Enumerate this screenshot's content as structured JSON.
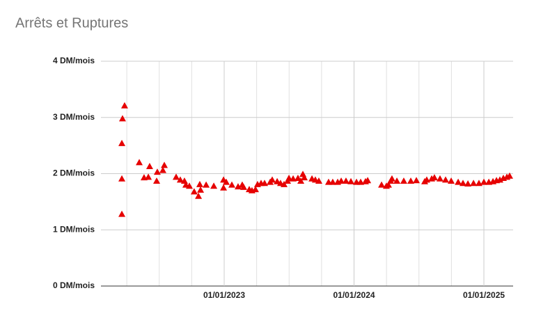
{
  "chart_data": {
    "type": "scatter",
    "title": "Arrêts et Ruptures",
    "marker": "triangle",
    "color": "#e60000",
    "grid": true,
    "xlim": [
      2022.051,
      2025.225
    ],
    "xticks": [
      {
        "value": 2023,
        "label": "01/01/2023"
      },
      {
        "value": 2024,
        "label": "01/01/2024"
      },
      {
        "value": 2025,
        "label": "01/01/2025"
      }
    ],
    "x_minor_grid": [
      2022.25,
      2022.5,
      2022.75,
      2023.25,
      2023.5,
      2023.75,
      2024.25,
      2024.5,
      2024.75
    ],
    "ylim": [
      0,
      4
    ],
    "yticks": [
      {
        "value": 0,
        "label": "0 DM/mois"
      },
      {
        "value": 1,
        "label": "1 DM/mois"
      },
      {
        "value": 2,
        "label": "2 DM/mois"
      },
      {
        "value": 3,
        "label": "3 DM/mois"
      },
      {
        "value": 4,
        "label": "4 DM/mois"
      }
    ],
    "x": [
      2022.212,
      2022.212,
      2022.212,
      2022.217,
      2022.233,
      2022.346,
      2022.383,
      2022.416,
      2022.426,
      2022.48,
      2022.485,
      2022.528,
      2022.539,
      2022.63,
      2022.662,
      2022.694,
      2022.705,
      2022.732,
      2022.769,
      2022.802,
      2022.812,
      2022.818,
      2022.861,
      2022.92,
      2022.995,
      2022.995,
      2023.016,
      2023.059,
      2023.107,
      2023.139,
      2023.15,
      2023.193,
      2023.214,
      2023.241,
      2023.257,
      2023.284,
      2023.311,
      2023.354,
      2023.37,
      2023.408,
      2023.434,
      2023.461,
      2023.488,
      2023.499,
      2023.531,
      2023.568,
      2023.59,
      2023.606,
      2023.617,
      2023.676,
      2023.702,
      2023.729,
      2023.804,
      2023.836,
      2023.874,
      2023.901,
      2023.938,
      2023.976,
      2024.019,
      2024.051,
      2024.088,
      2024.105,
      2024.212,
      2024.249,
      2024.265,
      2024.282,
      2024.292,
      2024.33,
      2024.383,
      2024.437,
      2024.48,
      2024.544,
      2024.56,
      2024.598,
      2024.619,
      2024.662,
      2024.705,
      2024.748,
      2024.802,
      2024.839,
      2024.877,
      2024.92,
      2024.962,
      2025.0,
      2025.038,
      2025.07,
      2025.097,
      2025.123,
      2025.15,
      2025.177,
      2025.198
    ],
    "values": [
      1.28,
      1.91,
      2.54,
      2.98,
      3.21,
      2.2,
      1.93,
      1.94,
      2.13,
      1.87,
      2.03,
      2.06,
      2.15,
      1.94,
      1.89,
      1.87,
      1.8,
      1.78,
      1.68,
      1.6,
      1.81,
      1.71,
      1.8,
      1.78,
      1.75,
      1.89,
      1.85,
      1.8,
      1.77,
      1.8,
      1.76,
      1.72,
      1.7,
      1.72,
      1.81,
      1.83,
      1.83,
      1.85,
      1.89,
      1.86,
      1.83,
      1.81,
      1.87,
      1.92,
      1.91,
      1.92,
      1.87,
      1.99,
      1.93,
      1.91,
      1.89,
      1.87,
      1.85,
      1.85,
      1.85,
      1.87,
      1.87,
      1.86,
      1.85,
      1.85,
      1.86,
      1.88,
      1.8,
      1.78,
      1.8,
      1.87,
      1.91,
      1.87,
      1.87,
      1.87,
      1.88,
      1.86,
      1.89,
      1.91,
      1.93,
      1.91,
      1.89,
      1.87,
      1.85,
      1.83,
      1.82,
      1.83,
      1.83,
      1.85,
      1.85,
      1.86,
      1.88,
      1.89,
      1.92,
      1.94,
      1.96
    ]
  }
}
